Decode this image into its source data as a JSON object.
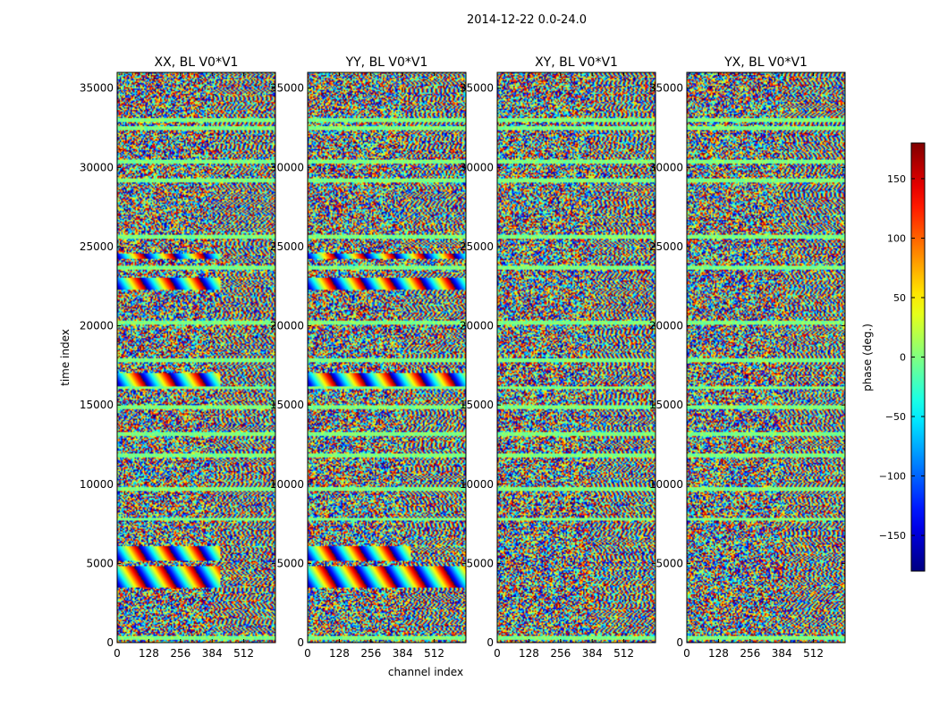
{
  "figure": {
    "title": "2014-12-22 0.0-24.0",
    "xlabel": "channel index",
    "ylabel": "time index"
  },
  "colorbar": {
    "label": "phase (deg.)",
    "range": [
      -180,
      180
    ],
    "ticks": [
      -150,
      -100,
      -50,
      0,
      50,
      100,
      150
    ],
    "tick_labels": [
      "−150",
      "−100",
      "−50",
      "0",
      "50",
      "100",
      "150"
    ],
    "colormap": "jet",
    "colors": [
      "#00007f",
      "#0000ff",
      "#00a0ff",
      "#29ffce",
      "#7dff7a",
      "#ceff29",
      "#ffc400",
      "#ff4800",
      "#b20000",
      "#7f0000"
    ]
  },
  "chart_data": [
    {
      "type": "heatmap",
      "title": "XX, BL V0*V1",
      "xlim": [
        0,
        640
      ],
      "ylim": [
        0,
        36000
      ],
      "xticks": [
        0,
        128,
        256,
        384,
        512
      ],
      "yticks": [
        0,
        5000,
        10000,
        15000,
        20000,
        25000,
        30000,
        35000
      ],
      "value": "phase (deg.)",
      "fringe_bands": [
        [
          3500,
          4800,
          0,
          420
        ],
        [
          5200,
          6100,
          0,
          420
        ],
        [
          16200,
          17000,
          0,
          420
        ],
        [
          22300,
          23000,
          0,
          420
        ],
        [
          24200,
          24600,
          0,
          420
        ]
      ],
      "flat_bands": [
        300,
        7800,
        9700,
        11800,
        13200,
        14900,
        16100,
        17800,
        20200,
        23700,
        25600,
        29200,
        30400,
        32500,
        33000
      ]
    },
    {
      "type": "heatmap",
      "title": "YY, BL V0*V1",
      "xlim": [
        0,
        640
      ],
      "ylim": [
        0,
        36000
      ],
      "xticks": [
        0,
        128,
        256,
        384,
        512
      ],
      "yticks": [
        0,
        5000,
        10000,
        15000,
        20000,
        25000,
        30000,
        35000
      ],
      "value": "phase (deg.)",
      "fringe_bands": [
        [
          3500,
          4800,
          0,
          640
        ],
        [
          5200,
          6100,
          0,
          420
        ],
        [
          16200,
          17000,
          0,
          640
        ],
        [
          22300,
          23000,
          0,
          640
        ],
        [
          24200,
          24600,
          0,
          640
        ]
      ],
      "flat_bands": [
        300,
        7800,
        9700,
        11800,
        13200,
        14900,
        16100,
        17800,
        20200,
        23700,
        25600,
        29200,
        30400,
        32500,
        33000
      ]
    },
    {
      "type": "heatmap",
      "title": "XY, BL V0*V1",
      "xlim": [
        0,
        640
      ],
      "ylim": [
        0,
        36000
      ],
      "xticks": [
        0,
        128,
        256,
        384,
        512
      ],
      "yticks": [
        0,
        5000,
        10000,
        15000,
        20000,
        25000,
        30000,
        35000
      ],
      "value": "phase (deg.)",
      "fringe_bands": [],
      "flat_bands": [
        300,
        7800,
        9700,
        11800,
        13200,
        14900,
        16100,
        17800,
        20200,
        23700,
        25600,
        29200,
        30400,
        32500,
        33000
      ]
    },
    {
      "type": "heatmap",
      "title": "YX, BL V0*V1",
      "xlim": [
        0,
        640
      ],
      "ylim": [
        0,
        36000
      ],
      "xticks": [
        0,
        128,
        256,
        384,
        512
      ],
      "yticks": [
        0,
        5000,
        10000,
        15000,
        20000,
        25000,
        30000,
        35000
      ],
      "value": "phase (deg.)",
      "fringe_bands": [],
      "flat_bands": [
        300,
        7800,
        9700,
        11800,
        13200,
        14900,
        16100,
        17800,
        20200,
        23700,
        25600,
        29200,
        30400,
        32500,
        33000
      ]
    }
  ]
}
